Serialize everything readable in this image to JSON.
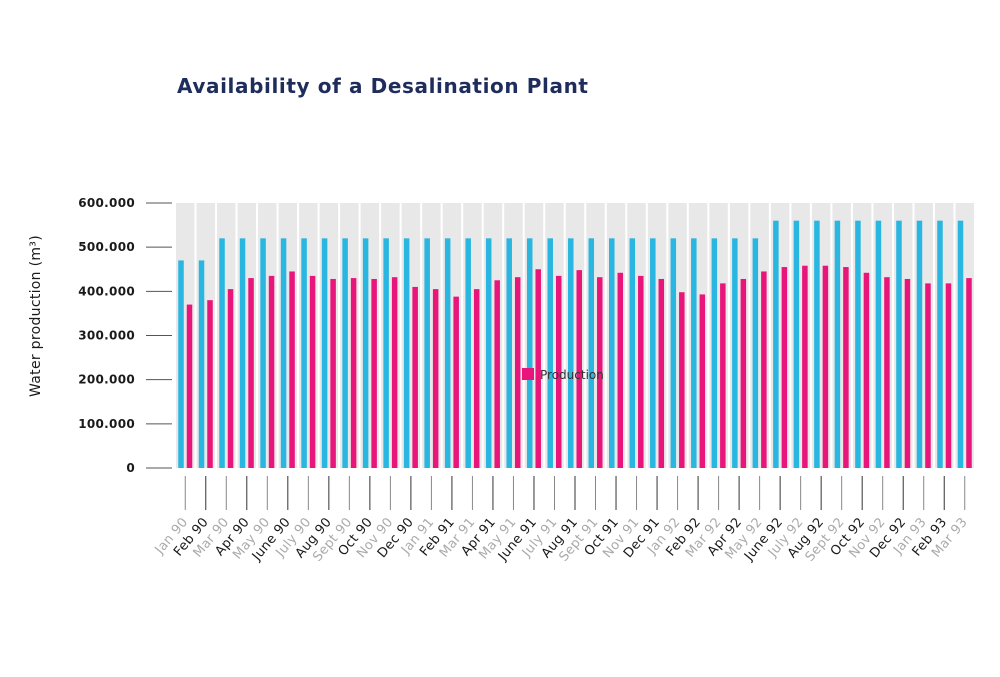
{
  "chart_data": {
    "type": "bar",
    "title": "Availability of a Desalination Plant",
    "ylabel": "Water production (m³)",
    "xlabel": "",
    "ylim": [
      0,
      600000
    ],
    "yticks": [
      "600.000",
      "500.000",
      "400.000",
      "300.000",
      "200.000",
      "100.000",
      "0"
    ],
    "ytick_values": [
      600000,
      500000,
      400000,
      300000,
      200000,
      100000,
      0
    ],
    "categories": [
      "Jan 90",
      "Feb 90",
      "Mar 90",
      "Apr 90",
      "May 90",
      "June 90",
      "July 90",
      "Aug 90",
      "Sept 90",
      "Oct 90",
      "Nov 90",
      "Dec 90",
      "Jan 91",
      "Feb 91",
      "Mar 91",
      "Apr 91",
      "May 91",
      "June 91",
      "July 91",
      "Aug 91",
      "Sept 91",
      "Oct 91",
      "Nov 91",
      "Dec 91",
      "Jan 92",
      "Feb 92",
      "Mar 92",
      "Apr 92",
      "May 92",
      "June 92",
      "July 92",
      "Aug 92",
      "Sept 92",
      "Oct 92",
      "Nov 92",
      "Dec 92",
      "Jan 93",
      "Feb 93",
      "Mar 93"
    ],
    "series": [
      {
        "name": "",
        "color": "#29b6e0",
        "values": [
          470000,
          470000,
          520000,
          520000,
          520000,
          520000,
          520000,
          520000,
          520000,
          520000,
          520000,
          520000,
          520000,
          520000,
          520000,
          520000,
          520000,
          520000,
          520000,
          520000,
          520000,
          520000,
          520000,
          520000,
          520000,
          520000,
          520000,
          520000,
          520000,
          560000,
          560000,
          560000,
          560000,
          560000,
          560000,
          560000,
          560000,
          560000,
          560000
        ]
      },
      {
        "name": "Production",
        "color": "#e8157a",
        "values": [
          370000,
          380000,
          405000,
          430000,
          435000,
          445000,
          435000,
          428000,
          430000,
          428000,
          432000,
          410000,
          405000,
          388000,
          405000,
          425000,
          432000,
          450000,
          435000,
          448000,
          432000,
          442000,
          435000,
          428000,
          398000,
          393000,
          418000,
          428000,
          445000,
          455000,
          458000,
          458000,
          455000,
          442000,
          432000,
          428000,
          418000,
          418000,
          430000
        ]
      }
    ],
    "grid": "alternating column bands",
    "legend": "center",
    "label_colors": [
      "#aaaaaa",
      "#1a1a1a"
    ]
  }
}
